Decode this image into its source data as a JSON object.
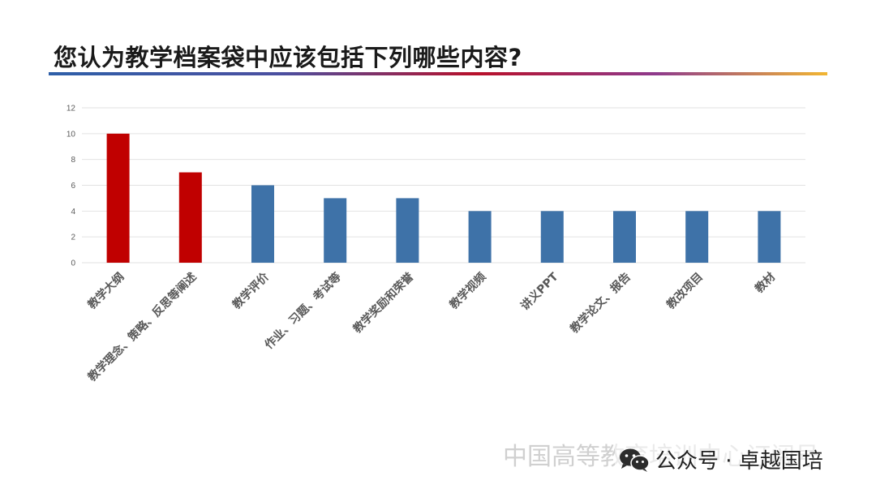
{
  "slide": {
    "title": "您认为教学档案袋中应该包括下列哪些内容?"
  },
  "watermark": {
    "text": "中国高等教育培训中心订阅号",
    "brand": "公众号 · 卓越国培",
    "icon": "wechat-icon"
  },
  "colors": {
    "highlight": "#c00000",
    "normal": "#3e72a8",
    "grid": "#e2e2e2",
    "axis_text": "#595959"
  },
  "chart_data": {
    "type": "bar",
    "categories": [
      "教学大纲",
      "教学理念、策略、反思等阐述",
      "教学评价",
      "作业、习题、考试等",
      "教学奖励和荣誉",
      "教学视频",
      "讲义PPT",
      "教学论文、报告",
      "教改项目",
      "教材"
    ],
    "values": [
      10,
      7,
      6,
      5,
      5,
      4,
      4,
      4,
      4,
      4
    ],
    "highlighted": [
      true,
      true,
      false,
      false,
      false,
      false,
      false,
      false,
      false,
      false
    ],
    "ylim": [
      0,
      12
    ],
    "yticks": [
      0,
      2,
      4,
      6,
      8,
      10,
      12
    ],
    "grid": true,
    "legend": "none"
  }
}
